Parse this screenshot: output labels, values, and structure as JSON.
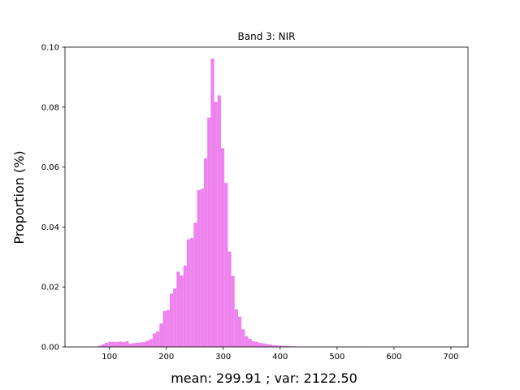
{
  "chart_data": {
    "type": "bar",
    "title": "Band 3: NIR",
    "xlabel": "mean: 299.91 ; var: 2122.50",
    "ylabel": "Proportion (%)",
    "xlim": [
      22,
      730
    ],
    "ylim": [
      0,
      0.1
    ],
    "x_ticks": [
      100,
      200,
      300,
      400,
      500,
      600,
      700
    ],
    "y_ticks": [
      0.0,
      0.02,
      0.04,
      0.06,
      0.08,
      0.1
    ],
    "y_tick_labels": [
      "0.00",
      "0.02",
      "0.04",
      "0.06",
      "0.08",
      "0.10"
    ],
    "bin_start": 80,
    "bin_width": 6,
    "values": [
      0.0004,
      0.0009,
      0.0014,
      0.0017,
      0.0017,
      0.0017,
      0.0018,
      0.0016,
      0.0019,
      0.0011,
      0.0013,
      0.0014,
      0.0015,
      0.0017,
      0.0021,
      0.0026,
      0.0045,
      0.0052,
      0.0078,
      0.012,
      0.0123,
      0.0178,
      0.0195,
      0.0251,
      0.0238,
      0.0271,
      0.0359,
      0.0363,
      0.0414,
      0.0523,
      0.0528,
      0.0629,
      0.0765,
      0.0962,
      0.0818,
      0.0839,
      0.0663,
      0.0547,
      0.0318,
      0.0237,
      0.0126,
      0.0101,
      0.0059,
      0.0036,
      0.0027,
      0.0019,
      0.0017,
      0.0013,
      0.0012,
      0.001,
      0.0008,
      0.0006,
      0.0005,
      0.0004,
      0.0003,
      0.0003,
      0.0002,
      0.0002,
      0.0001,
      0.0001,
      0.0001,
      0.0001,
      0.0001,
      0.0001,
      0.0001,
      0.0001,
      0.0001,
      0.0001,
      0.0001,
      0.0001,
      0.0001,
      0.0001,
      0.0001,
      0.0001,
      0.0001,
      0.0001,
      0.0001,
      0.0001,
      0.0001,
      0.0001
    ],
    "bar_color": "#ee82ee",
    "grid": false,
    "legend": "none"
  }
}
